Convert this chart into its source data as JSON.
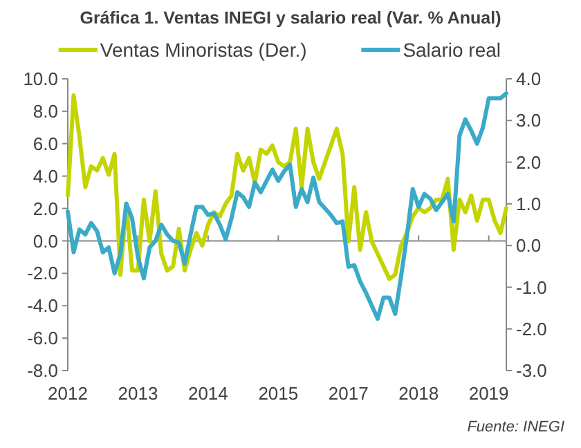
{
  "chart_data": {
    "type": "line",
    "title": "Gráfica 1. Ventas INEGI y salario real (Var. % Anual)",
    "annotations": [
      "Fuente: INEGI"
    ],
    "legend": "top",
    "grid": false,
    "ref_lines": [
      {
        "axis": "y",
        "value": 0,
        "color": "#888888"
      }
    ],
    "marker": "none",
    "line_style": "solid",
    "categories": [
      "2012",
      null,
      null,
      null,
      null,
      null,
      null,
      null,
      null,
      null,
      null,
      null,
      "2013",
      null,
      null,
      null,
      null,
      null,
      null,
      null,
      null,
      null,
      null,
      null,
      "2014",
      null,
      null,
      null,
      null,
      null,
      null,
      null,
      null,
      null,
      null,
      null,
      "2015",
      null,
      null,
      null,
      null,
      null,
      null,
      null,
      null,
      null,
      null,
      null,
      "2017",
      null,
      null,
      null,
      null,
      null,
      null,
      null,
      null,
      null,
      null,
      null,
      "2018",
      null,
      null,
      null,
      null,
      null,
      null,
      null,
      null,
      null,
      null,
      null,
      "2019",
      null,
      null,
      null
    ],
    "ylim": [
      -8,
      10
    ],
    "yticks": [
      {
        "value": -8,
        "label": "-8.0"
      },
      {
        "value": -6,
        "label": "-6.0"
      },
      {
        "value": -4,
        "label": "-4.0"
      },
      {
        "value": -2,
        "label": "-2.0"
      },
      {
        "value": 0,
        "label": "0.0"
      },
      {
        "value": 2,
        "label": "2.0"
      },
      {
        "value": 4,
        "label": "4.0"
      },
      {
        "value": 6,
        "label": "6.0"
      },
      {
        "value": 8,
        "label": "8.0"
      },
      {
        "value": 10,
        "label": "10.0"
      }
    ],
    "y2lim": [
      -3,
      4
    ],
    "y2ticks": [
      {
        "value": -3,
        "label": "-3.0"
      },
      {
        "value": -2,
        "label": "-2.0"
      },
      {
        "value": -1,
        "label": "-1.0"
      },
      {
        "value": 0,
        "label": "0.0"
      },
      {
        "value": 1,
        "label": "1.0"
      },
      {
        "value": 2,
        "label": "2.0"
      },
      {
        "value": 3,
        "label": "3.0"
      },
      {
        "value": 4,
        "label": "4.0"
      }
    ],
    "series": [
      {
        "name": "Ventas Minoristas (Der.)",
        "color": "#c3d400",
        "axis": "y2",
        "values": [
          1.2,
          3.6,
          2.6,
          1.4,
          1.9,
          1.8,
          2.1,
          1.7,
          2.2,
          -0.7,
          1.0,
          -0.6,
          -0.6,
          1.1,
          0.1,
          1.3,
          -0.2,
          -0.6,
          -0.5,
          0.4,
          -0.6,
          -0.1,
          0.3,
          0.0,
          0.5,
          0.8,
          0.7,
          1.0,
          1.2,
          2.2,
          1.8,
          2.1,
          1.5,
          2.3,
          2.2,
          2.4,
          2.0,
          1.9,
          2.0,
          2.8,
          1.4,
          2.8,
          2.0,
          1.6,
          2.0,
          2.4,
          2.8,
          2.2,
          0.1,
          1.4,
          -0.1,
          0.8,
          0.1,
          -0.2,
          -0.5,
          -0.8,
          -0.7,
          0.0,
          0.3,
          0.7,
          0.9,
          0.8,
          0.9,
          1.1,
          1.1,
          1.6,
          -0.1,
          1.1,
          0.8,
          1.2,
          0.6,
          1.1,
          1.1,
          0.6,
          0.3,
          0.9
        ]
      },
      {
        "name": "Salario real",
        "color": "#3aaac8",
        "axis": "y",
        "values": [
          1.8,
          -0.7,
          0.7,
          0.4,
          1.1,
          0.6,
          -0.7,
          -0.4,
          -2.0,
          -0.8,
          2.3,
          1.4,
          -1.0,
          -2.3,
          -0.4,
          0.0,
          1.0,
          0.4,
          0.0,
          -0.1,
          -1.4,
          0.4,
          2.1,
          2.1,
          1.6,
          1.7,
          1.0,
          0.1,
          1.4,
          3.0,
          2.7,
          2.1,
          3.6,
          3.0,
          3.7,
          4.4,
          3.7,
          4.3,
          4.7,
          2.1,
          3.2,
          2.4,
          3.9,
          2.4,
          2.0,
          1.6,
          1.1,
          1.2,
          -1.6,
          -1.5,
          -2.5,
          -3.2,
          -4.0,
          -4.8,
          -3.5,
          -3.5,
          -4.5,
          -2.2,
          0.3,
          3.2,
          2.1,
          2.9,
          2.6,
          1.9,
          2.4,
          2.9,
          1.2,
          6.5,
          7.5,
          6.8,
          6.0,
          7.0,
          8.8,
          8.8,
          8.8,
          9.1
        ]
      }
    ]
  }
}
